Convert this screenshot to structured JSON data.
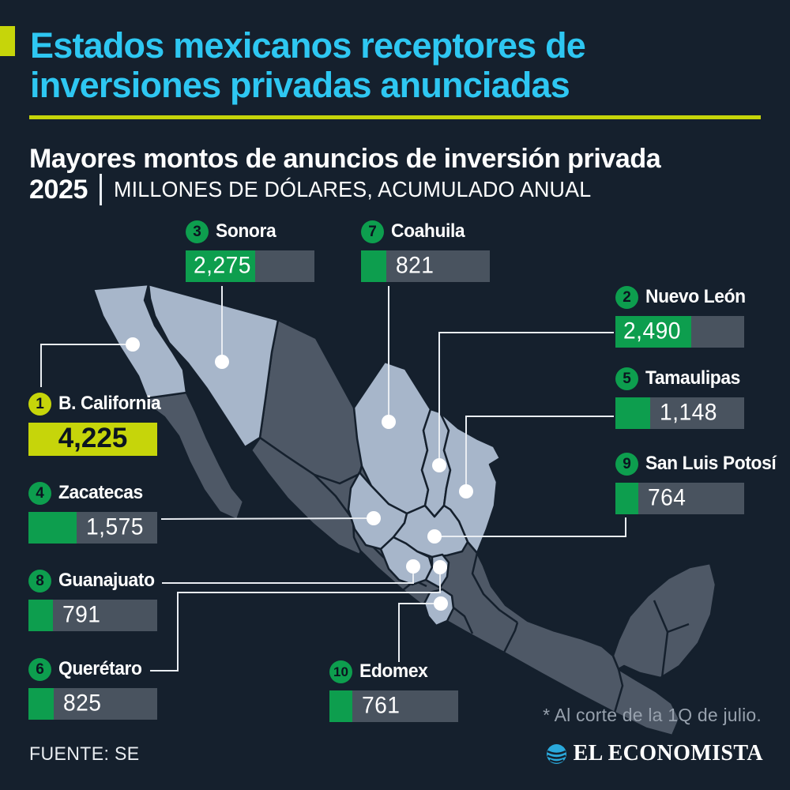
{
  "header": {
    "title_line1": "Estados mexicanos receptores de",
    "title_line2": "inversiones privadas anunciadas",
    "subtitle": "Mayores montos de anuncios de inversión privada",
    "year": "2025",
    "units_label": "MILLONES DE DÓLARES, ACUMULADO ANUAL"
  },
  "chart_data": {
    "type": "bar",
    "title": "Mayores montos de anuncios de inversión privada 2025",
    "units": "Millones de dólares, acumulado anual",
    "max_value": 4225,
    "categories": [
      "B. California",
      "Nuevo León",
      "Sonora",
      "Zacatecas",
      "Tamaulipas",
      "Querétaro",
      "Coahuila",
      "Guanajuato",
      "San Luis Potosí",
      "Edomex"
    ],
    "values": [
      4225,
      2490,
      2275,
      1575,
      1148,
      825,
      821,
      791,
      764,
      761
    ],
    "states": [
      {
        "rank": "1",
        "name": "B. California",
        "value": 4225,
        "display": "4,225",
        "highlight": true
      },
      {
        "rank": "2",
        "name": "Nuevo León",
        "value": 2490,
        "display": "2,490",
        "highlight": false
      },
      {
        "rank": "3",
        "name": "Sonora",
        "value": 2275,
        "display": "2,275",
        "highlight": false
      },
      {
        "rank": "4",
        "name": "Zacatecas",
        "value": 1575,
        "display": "1,575",
        "highlight": false
      },
      {
        "rank": "5",
        "name": "Tamaulipas",
        "value": 1148,
        "display": "1,148",
        "highlight": false
      },
      {
        "rank": "6",
        "name": "Querétaro",
        "value": 825,
        "display": "825",
        "highlight": false
      },
      {
        "rank": "7",
        "name": "Coahuila",
        "value": 821,
        "display": "821",
        "highlight": false
      },
      {
        "rank": "8",
        "name": "Guanajuato",
        "value": 791,
        "display": "791",
        "highlight": false
      },
      {
        "rank": "9",
        "name": "San Luis Potosí",
        "value": 764,
        "display": "764",
        "highlight": false
      },
      {
        "rank": "10",
        "name": "Edomex",
        "value": 761,
        "display": "761",
        "highlight": false
      }
    ]
  },
  "footnote": "* Al corte de la 1Q de julio.",
  "source": "FUENTE: SE",
  "brand": "EL ECONOMISTA",
  "colors": {
    "bg": "#15202D",
    "state_light": "#A7B6CA",
    "state_dark": "#4E5866",
    "bar_track": "#49535F",
    "green": "#0D9E4E",
    "yellow": "#C6D50A",
    "cyan": "#2EC7F2",
    "callout": "#E9EDF2",
    "muted": "#97A1AD",
    "badge_text": "#0B1420"
  }
}
